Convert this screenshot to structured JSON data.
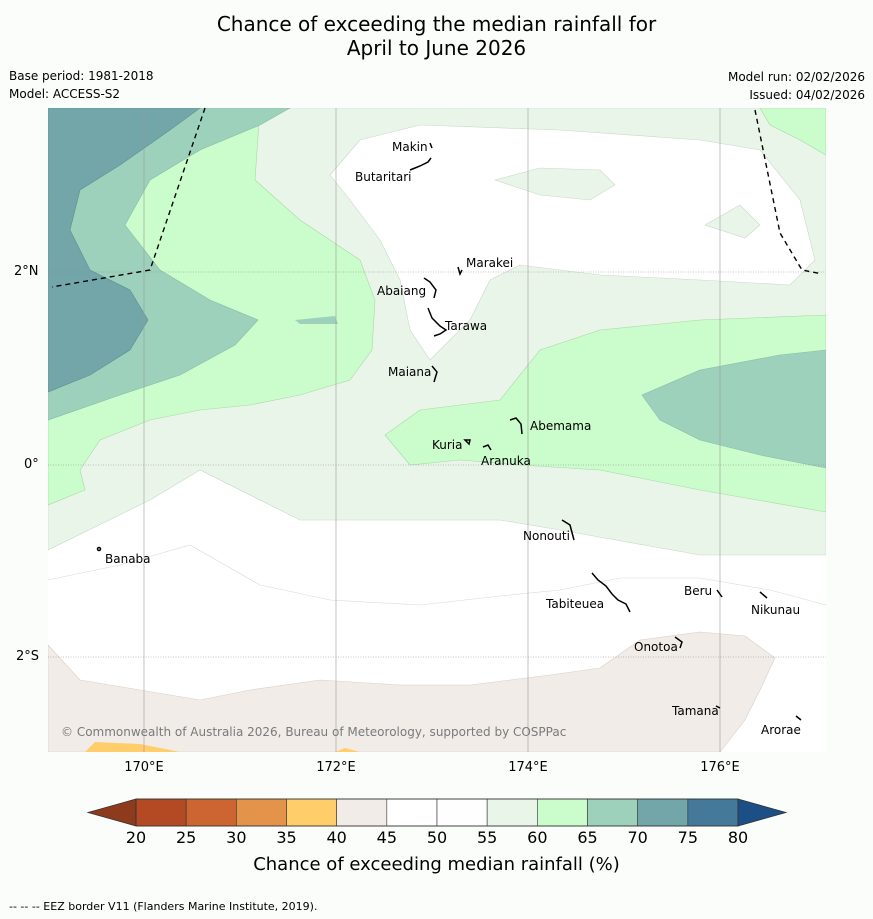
{
  "title_line1": "Chance of exceeding the median rainfall for",
  "title_line2": "April to June 2026",
  "base_period": "Base period: 1981-2018",
  "model": "Model: ACCESS-S2",
  "model_run": "Model run: 02/02/2026",
  "issued": "Issued: 04/02/2026",
  "copyright": "© Commonwealth of Australia 2026, Bureau of Meteorology, supported by COSPPac",
  "lat_labels": [
    "2°N",
    "0°",
    "2°S"
  ],
  "lon_labels": [
    "170°E",
    "172°E",
    "174°E",
    "176°E"
  ],
  "places": {
    "makin": "Makin",
    "butaritari": "Butaritari",
    "marakei": "Marakei",
    "abaiang": "Abaiang",
    "tarawa": "Tarawa",
    "maiana": "Maiana",
    "abemama": "Abemama",
    "kuria": "Kuria",
    "aranuka": "Aranuka",
    "nonouti": "Nonouti",
    "banaba": "Banaba",
    "tabiteuea": "Tabiteuea",
    "beru": "Beru",
    "nikunau": "Nikunau",
    "onotoa": "Onotoa",
    "tamana": "Tamana",
    "arorae": "Arorae"
  },
  "colorbar": {
    "ticks": [
      "20",
      "25",
      "30",
      "35",
      "40",
      "45",
      "50",
      "55",
      "60",
      "65",
      "70",
      "75",
      "80"
    ],
    "colors": [
      "#8e3a1d",
      "#b34a23",
      "#cd6532",
      "#e3934a",
      "#ffce6a",
      "#f1ece7",
      "#ffffff",
      "#fdfefd",
      "#eaf5ea",
      "#cbfccb",
      "#9dd1bb",
      "#72a6a8",
      "#44799a",
      "#1c4f86"
    ],
    "title": "Chance of exceeding median rainfall (%)"
  },
  "footnote": "--  --  -- EEZ border V11 (Flanders Marine Institute, 2019)."
}
